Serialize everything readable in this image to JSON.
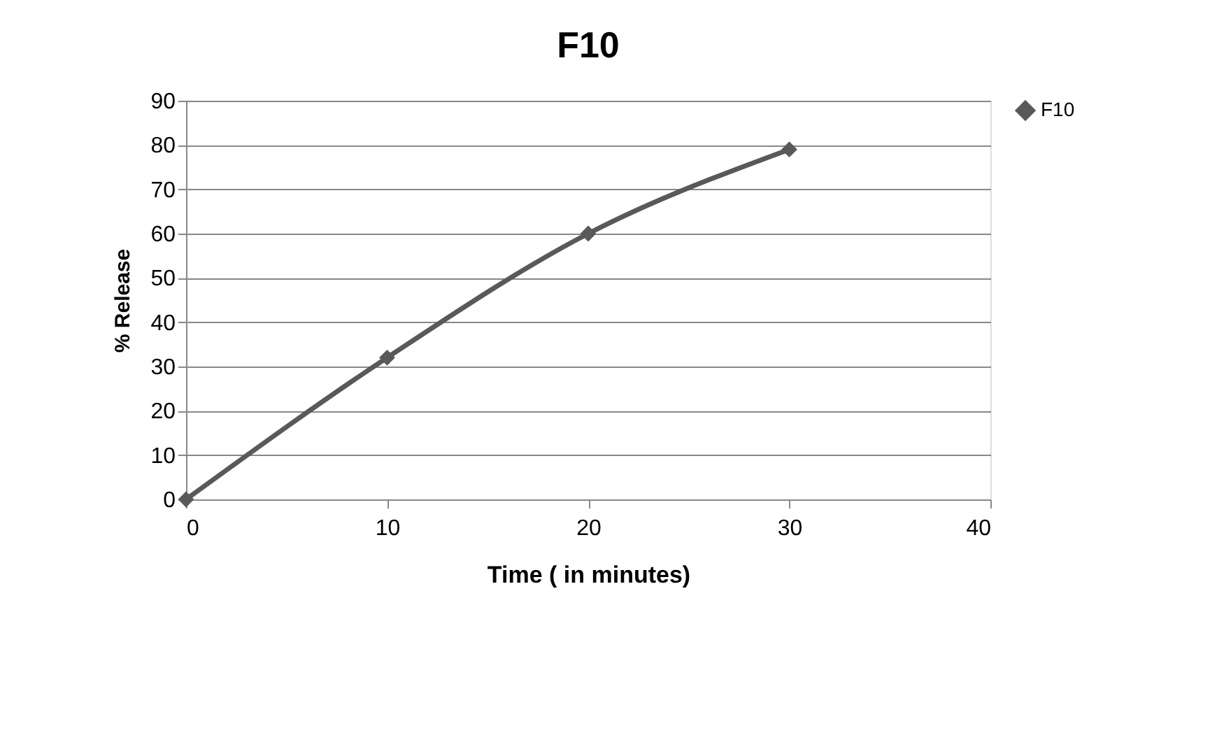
{
  "chart_data": {
    "type": "line",
    "title": "F10",
    "xlabel": "Time ( in minutes)",
    "ylabel": "% Release",
    "x": [
      0,
      10,
      20,
      30
    ],
    "series": [
      {
        "name": "F10",
        "color": "#595959",
        "values": [
          0,
          32,
          60,
          79
        ]
      }
    ],
    "xlim": [
      0,
      40
    ],
    "xticks": [
      0,
      10,
      20,
      30,
      40
    ],
    "ylim": [
      0,
      90
    ],
    "yticks": [
      0,
      10,
      20,
      30,
      40,
      50,
      60,
      70,
      80,
      90
    ],
    "grid": "y",
    "legend": "right",
    "marker": "diamond",
    "line_style": "solid"
  }
}
